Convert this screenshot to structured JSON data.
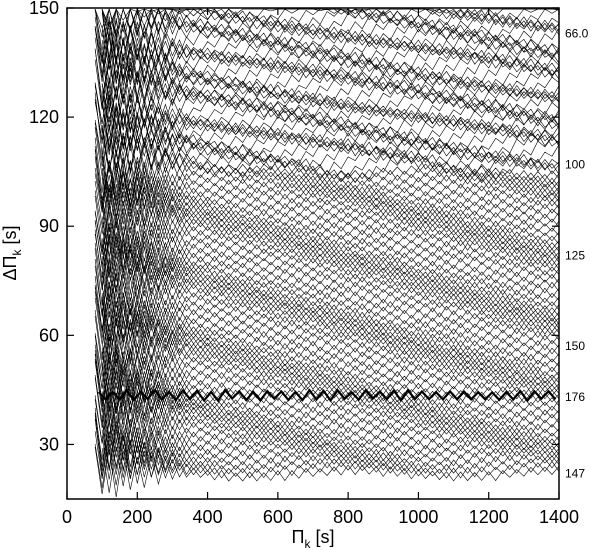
{
  "chart_data": {
    "type": "line",
    "xlabel": "Π",
    "xlabel_sub": "k",
    "xlabel_unit": "[s]",
    "ylabel": "ΔΠ",
    "ylabel_sub": "k",
    "ylabel_unit": "[s]",
    "xlim": [
      0,
      1400
    ],
    "ylim": [
      15,
      150
    ],
    "xticks": [
      0,
      200,
      400,
      600,
      800,
      1000,
      1200,
      1400
    ],
    "xtick_labels": [
      "0",
      "200",
      "400",
      "600",
      "800",
      "1000",
      "1200",
      "1400"
    ],
    "yticks": [
      30,
      60,
      90,
      120,
      150
    ],
    "ytick_labels": [
      "30",
      "60",
      "90",
      "120",
      "150"
    ],
    "grid": false,
    "legend": "none",
    "line_color": "#000000",
    "series_note_values": {
      "series_count": 130,
      "x_start_values": [
        80,
        100
      ],
      "x_end_value": 1400,
      "lowest_offset": 22,
      "offset_step": 1.0,
      "bold_series_level": 43.5
    },
    "right_labels": [
      {
        "text": "66.0",
        "y": 143
      },
      {
        "text": "100",
        "y": 107
      },
      {
        "text": "125",
        "y": 82
      },
      {
        "text": "150",
        "y": 57
      },
      {
        "text": "176",
        "y": 43
      },
      {
        "text": "147",
        "y": 22
      }
    ]
  }
}
